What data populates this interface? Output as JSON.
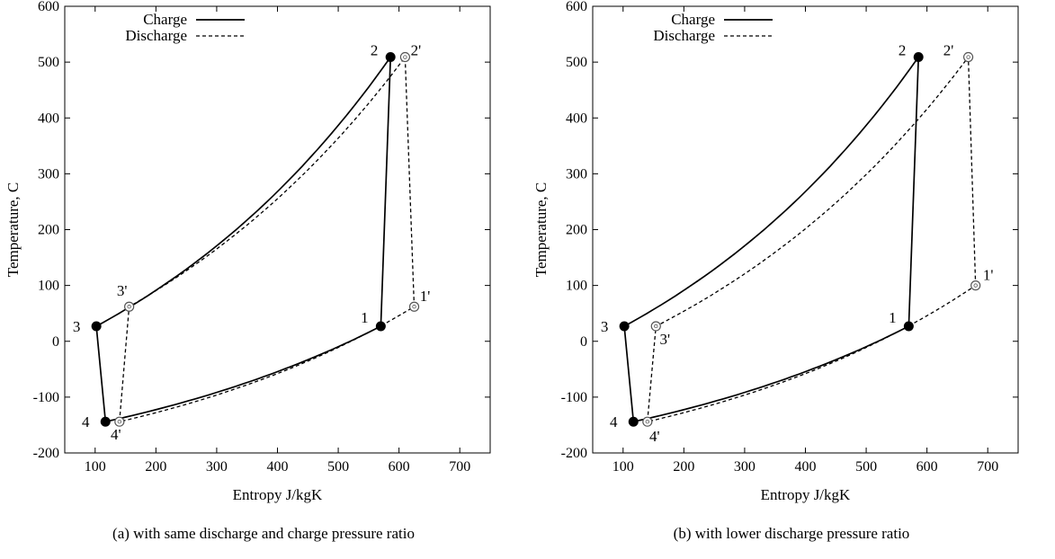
{
  "chart_data": [
    {
      "type": "line",
      "caption": "(a) with same discharge and charge pressure ratio",
      "xlabel": "Entropy J/kgK",
      "ylabel": "Temperature, C",
      "xlim": [
        50,
        750
      ],
      "ylim": [
        -200,
        600
      ],
      "xticks": [
        100,
        200,
        300,
        400,
        500,
        600,
        700
      ],
      "yticks": [
        -200,
        -100,
        0,
        100,
        200,
        300,
        400,
        500,
        600
      ],
      "grid": false,
      "legend_position": "top-left",
      "series": [
        {
          "name": "Charge",
          "style": "solid",
          "points": [
            {
              "label": "1",
              "x": 570,
              "y": 27
            },
            {
              "label": "2",
              "x": 586,
              "y": 509
            },
            {
              "label": "3",
              "x": 102,
              "y": 27
            },
            {
              "label": "4",
              "x": 117,
              "y": -144
            }
          ]
        },
        {
          "name": "Discharge",
          "style": "dashed",
          "points": [
            {
              "label": "1'",
              "x": 625,
              "y": 62
            },
            {
              "label": "2'",
              "x": 610,
              "y": 509
            },
            {
              "label": "3'",
              "x": 156,
              "y": 62
            },
            {
              "label": "4'",
              "x": 140,
              "y": -144
            }
          ]
        }
      ]
    },
    {
      "type": "line",
      "caption": "(b) with lower discharge pressure ratio",
      "xlabel": "Entropy J/kgK",
      "ylabel": "Temperature, C",
      "xlim": [
        50,
        750
      ],
      "ylim": [
        -200,
        600
      ],
      "xticks": [
        100,
        200,
        300,
        400,
        500,
        600,
        700
      ],
      "yticks": [
        -200,
        -100,
        0,
        100,
        200,
        300,
        400,
        500,
        600
      ],
      "grid": false,
      "legend_position": "top-left",
      "series": [
        {
          "name": "Charge",
          "style": "solid",
          "points": [
            {
              "label": "1",
              "x": 570,
              "y": 27
            },
            {
              "label": "2",
              "x": 586,
              "y": 509
            },
            {
              "label": "3",
              "x": 102,
              "y": 27
            },
            {
              "label": "4",
              "x": 117,
              "y": -144
            }
          ]
        },
        {
          "name": "Discharge",
          "style": "dashed",
          "points": [
            {
              "label": "1'",
              "x": 680,
              "y": 100
            },
            {
              "label": "2'",
              "x": 668,
              "y": 509
            },
            {
              "label": "3'",
              "x": 154,
              "y": 27
            },
            {
              "label": "4'",
              "x": 140,
              "y": -144
            }
          ]
        }
      ]
    }
  ]
}
